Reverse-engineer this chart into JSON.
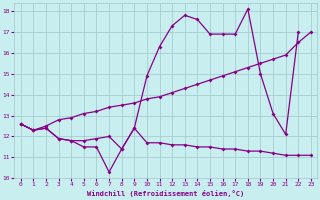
{
  "xlabel": "Windchill (Refroidissement éolien,°C)",
  "bg_color": "#c8eef0",
  "grid_color": "#a0c8c8",
  "line_color": "#880088",
  "xlim": [
    -0.5,
    23.5
  ],
  "ylim": [
    10,
    18.4
  ],
  "yticks": [
    10,
    11,
    12,
    13,
    14,
    15,
    16,
    17,
    18
  ],
  "xticks": [
    0,
    1,
    2,
    3,
    4,
    5,
    6,
    7,
    8,
    9,
    10,
    11,
    12,
    13,
    14,
    15,
    16,
    17,
    18,
    19,
    20,
    21,
    22,
    23
  ],
  "line1_x": [
    0,
    1,
    2,
    3,
    4,
    5,
    6,
    7,
    8,
    9,
    10,
    11,
    12,
    13,
    14,
    15,
    16,
    17,
    18,
    19,
    20,
    21,
    22
  ],
  "line1_y": [
    12.6,
    12.3,
    12.4,
    11.9,
    11.8,
    11.5,
    11.5,
    10.3,
    11.4,
    12.4,
    14.9,
    16.3,
    17.3,
    17.8,
    17.6,
    16.9,
    16.9,
    16.9,
    18.1,
    15.0,
    13.1,
    12.1,
    17.0
  ],
  "line2_x": [
    0,
    1,
    2,
    3,
    4,
    5,
    6,
    7,
    8,
    9,
    10,
    11,
    12,
    13,
    14,
    15,
    16,
    17,
    18,
    19,
    20,
    21,
    22,
    23
  ],
  "line2_y": [
    12.6,
    12.3,
    12.5,
    12.8,
    12.9,
    13.1,
    13.2,
    13.4,
    13.5,
    13.6,
    13.8,
    13.9,
    14.1,
    14.3,
    14.5,
    14.7,
    14.9,
    15.1,
    15.3,
    15.5,
    15.7,
    15.9,
    16.5,
    17.0
  ],
  "line3_x": [
    0,
    1,
    2,
    3,
    4,
    5,
    6,
    7,
    8,
    9,
    10,
    11,
    12,
    13,
    14,
    15,
    16,
    17,
    18,
    19,
    20,
    21,
    22,
    23
  ],
  "line3_y": [
    12.6,
    12.3,
    12.4,
    11.9,
    11.8,
    11.8,
    11.9,
    12.0,
    11.4,
    12.4,
    11.7,
    11.7,
    11.6,
    11.6,
    11.5,
    11.5,
    11.4,
    11.4,
    11.3,
    11.3,
    11.2,
    11.1,
    11.1,
    11.1
  ]
}
